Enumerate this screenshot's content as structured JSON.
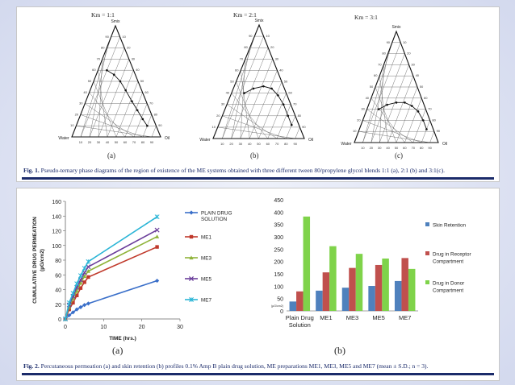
{
  "fig1": {
    "caption_label": "Fig. 1.",
    "caption_text": "Pseudo-ternary phase diagrams of the region of existence of the ME systems obtained with three different tween 80/propylene glycol blends 1:1 (a), 2:1 (b) and 3:1(c).",
    "vertex_top": "Smix",
    "vertex_left": "Water",
    "vertex_right": "Oil",
    "ticks": [
      "10",
      "20",
      "30",
      "40",
      "50",
      "60",
      "70",
      "80",
      "90"
    ],
    "diagrams": [
      {
        "km_label": "Km = 1:1",
        "panel_label": "(a)"
      },
      {
        "km_label": "Km = 2:1",
        "panel_label": "(b)"
      },
      {
        "km_label": "Km = 3:1",
        "panel_label": "(c)"
      }
    ]
  },
  "fig2": {
    "caption_label": "Fig. 2.",
    "caption_text": "Percutaneous permeation (a) and skin retention (b) profiles 0.1% Amp B plain drug solution, ME preparations ME1, ME3, ME5 and ME7 (mean ± S.D.; n = 3).",
    "panel_a_label": "(a)",
    "panel_b_label": "(b)"
  },
  "chart_data": [
    {
      "type": "line",
      "ylabel": "CUMULATIVE DRUG PERMEATION (µG/cm2)",
      "xlabel": "TIME (hrs.)",
      "xlim": [
        0,
        30
      ],
      "ylim": [
        0,
        160
      ],
      "xticks": [
        0,
        10,
        20,
        30
      ],
      "yticks": [
        0,
        20,
        40,
        60,
        80,
        100,
        120,
        140,
        160
      ],
      "x": [
        0,
        1,
        2,
        3,
        4,
        5,
        6,
        24
      ],
      "legend_position": "right",
      "series": [
        {
          "name": "PLAIN DRUG SOLUTION",
          "color": "#3a6fc9",
          "marker": "diamond",
          "values": [
            0,
            5,
            9,
            13,
            16,
            19,
            21,
            52
          ]
        },
        {
          "name": "ME1",
          "color": "#c0392b",
          "marker": "square",
          "values": [
            0,
            13,
            22,
            32,
            42,
            50,
            57,
            98
          ]
        },
        {
          "name": "ME3",
          "color": "#8fb33a",
          "marker": "triangle",
          "values": [
            0,
            16,
            28,
            38,
            49,
            58,
            65,
            112
          ]
        },
        {
          "name": "ME5",
          "color": "#6a3d9a",
          "marker": "x",
          "values": [
            0,
            19,
            31,
            43,
            53,
            63,
            71,
            121
          ]
        },
        {
          "name": "ME7",
          "color": "#2bb5d6",
          "marker": "star",
          "values": [
            0,
            22,
            35,
            48,
            59,
            69,
            78,
            139
          ]
        }
      ]
    },
    {
      "type": "bar",
      "ylabel": "(µG/cm2)",
      "ylim": [
        0,
        450
      ],
      "yticks": [
        0,
        50,
        100,
        150,
        200,
        250,
        300,
        350,
        400,
        450
      ],
      "categories": [
        "Plain Drug Solution",
        "ME1",
        "ME3",
        "ME5",
        "ME7"
      ],
      "category_lines": [
        [
          "Plain Drug",
          "Solution"
        ],
        [
          "ME1"
        ],
        [
          "ME3"
        ],
        [
          "ME5"
        ],
        [
          "ME7"
        ]
      ],
      "legend_position": "right",
      "series": [
        {
          "name": "Skin Retention",
          "color": "#4f81bd",
          "values": [
            38,
            82,
            94,
            101,
            121
          ]
        },
        {
          "name": "Drug in Receptor Compartment",
          "legend_lines": [
            "Drug in Receptor",
            "Compartment"
          ],
          "color": "#c0504d",
          "values": [
            79,
            156,
            174,
            186,
            214
          ]
        },
        {
          "name": "Drug in Donor Compartment",
          "legend_lines": [
            "Drug in Donor",
            "Compartment"
          ],
          "color": "#7fd34a",
          "values": [
            382,
            262,
            231,
            212,
            170
          ]
        }
      ]
    }
  ]
}
